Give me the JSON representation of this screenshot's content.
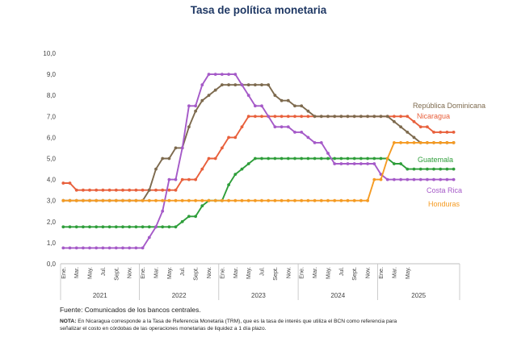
{
  "chart_data": {
    "type": "line",
    "title": "Tasa de política monetaria",
    "ylim": [
      0,
      10
    ],
    "yticks": [
      "0,0",
      "1,0",
      "2,0",
      "3,0",
      "4,0",
      "5,0",
      "6,0",
      "7,0",
      "8,0",
      "9,0",
      "10,0"
    ],
    "month_labels": [
      "Ene.",
      "Mar.",
      "May.",
      "Jul.",
      "Sept.",
      "Nov.",
      "Ene.",
      "Mar.",
      "May.",
      "Jul.",
      "Sept.",
      "Nov.",
      "Ene.",
      "Mar.",
      "May.",
      "Jul.",
      "Sept.",
      "Nov.",
      "Ene.",
      "Mar.",
      "May.",
      "Jul.",
      "Sept.",
      "Nov.",
      "Ene.",
      "Mar.",
      "May."
    ],
    "years": [
      "2021",
      "2022",
      "2023",
      "2024",
      "2025"
    ],
    "grid": false,
    "series": [
      {
        "name": "Nicaragua",
        "color": "#e8603c",
        "values": [
          3.83,
          3.83,
          3.5,
          3.5,
          3.5,
          3.5,
          3.5,
          3.5,
          3.5,
          3.5,
          3.5,
          3.5,
          3.5,
          3.5,
          3.5,
          3.5,
          3.5,
          3.5,
          4.0,
          4.0,
          4.0,
          4.5,
          5.0,
          5.0,
          5.5,
          6.0,
          6.0,
          6.5,
          7.0,
          7.0,
          7.0,
          7.0,
          7.0,
          7.0,
          7.0,
          7.0,
          7.0,
          7.0,
          7.0,
          7.0,
          7.0,
          7.0,
          7.0,
          7.0,
          7.0,
          7.0,
          7.0,
          7.0,
          7.0,
          7.0,
          7.0,
          7.0,
          7.0,
          6.75,
          6.5,
          6.5,
          6.25,
          6.25,
          6.25,
          6.25
        ]
      },
      {
        "name": "República Dominicana",
        "color": "#7d6a4e",
        "values": [
          3.0,
          3.0,
          3.0,
          3.0,
          3.0,
          3.0,
          3.0,
          3.0,
          3.0,
          3.0,
          3.0,
          3.0,
          3.0,
          3.5,
          4.5,
          5.0,
          5.0,
          5.5,
          5.5,
          6.5,
          7.25,
          7.75,
          8.0,
          8.25,
          8.5,
          8.5,
          8.5,
          8.5,
          8.5,
          8.5,
          8.5,
          8.5,
          8.0,
          7.75,
          7.75,
          7.5,
          7.5,
          7.25,
          7.0,
          7.0,
          7.0,
          7.0,
          7.0,
          7.0,
          7.0,
          7.0,
          7.0,
          7.0,
          7.0,
          7.0,
          6.75,
          6.5,
          6.25,
          6.0,
          5.75,
          5.75,
          5.75,
          5.75,
          5.75,
          5.75
        ]
      },
      {
        "name": "Guatemala",
        "color": "#2e9e3a",
        "values": [
          1.75,
          1.75,
          1.75,
          1.75,
          1.75,
          1.75,
          1.75,
          1.75,
          1.75,
          1.75,
          1.75,
          1.75,
          1.75,
          1.75,
          1.75,
          1.75,
          1.75,
          1.75,
          2.0,
          2.25,
          2.25,
          2.75,
          3.0,
          3.0,
          3.0,
          3.75,
          4.25,
          4.5,
          4.75,
          5.0,
          5.0,
          5.0,
          5.0,
          5.0,
          5.0,
          5.0,
          5.0,
          5.0,
          5.0,
          5.0,
          5.0,
          5.0,
          5.0,
          5.0,
          5.0,
          5.0,
          5.0,
          5.0,
          5.0,
          5.0,
          4.75,
          4.75,
          4.5,
          4.5,
          4.5,
          4.5,
          4.5,
          4.5,
          4.5,
          4.5
        ]
      },
      {
        "name": "Costa Rica",
        "color": "#a55ac8",
        "values": [
          0.75,
          0.75,
          0.75,
          0.75,
          0.75,
          0.75,
          0.75,
          0.75,
          0.75,
          0.75,
          0.75,
          0.75,
          0.75,
          1.25,
          1.75,
          2.5,
          4.0,
          4.0,
          5.5,
          7.5,
          7.5,
          8.5,
          9.0,
          9.0,
          9.0,
          9.0,
          9.0,
          8.5,
          8.0,
          7.5,
          7.5,
          7.0,
          6.5,
          6.5,
          6.5,
          6.25,
          6.25,
          6.0,
          5.75,
          5.75,
          5.25,
          4.75,
          4.75,
          4.75,
          4.75,
          4.75,
          4.75,
          4.75,
          4.25,
          4.0,
          4.0,
          4.0,
          4.0,
          4.0,
          4.0,
          4.0,
          4.0,
          4.0,
          4.0,
          4.0
        ]
      },
      {
        "name": "Honduras",
        "color": "#f59b23",
        "values": [
          3.0,
          3.0,
          3.0,
          3.0,
          3.0,
          3.0,
          3.0,
          3.0,
          3.0,
          3.0,
          3.0,
          3.0,
          3.0,
          3.0,
          3.0,
          3.0,
          3.0,
          3.0,
          3.0,
          3.0,
          3.0,
          3.0,
          3.0,
          3.0,
          3.0,
          3.0,
          3.0,
          3.0,
          3.0,
          3.0,
          3.0,
          3.0,
          3.0,
          3.0,
          3.0,
          3.0,
          3.0,
          3.0,
          3.0,
          3.0,
          3.0,
          3.0,
          3.0,
          3.0,
          3.0,
          3.0,
          3.0,
          4.0,
          4.0,
          5.0,
          5.75,
          5.75,
          5.75,
          5.75,
          5.75,
          5.75,
          5.75,
          5.75,
          5.75,
          5.75
        ]
      }
    ]
  },
  "footer": {
    "source": "Fuente: Comunicados de los bancos centrales.",
    "note_label": "NOTA:",
    "note_text": "En Nicaragua corresponde a la Tasa de Referencia Monetaria (TRM), que es la tasa de interés que utiliza el BCN como referencia para señalizar el costo en córdobas de las operaciones monetarias de liquidez a 1 día plazo."
  }
}
